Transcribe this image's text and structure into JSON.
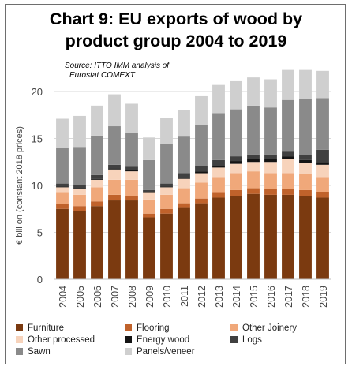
{
  "title": {
    "line1": "Chart 9: EU exports of wood by",
    "line2": "product group 2004 to 2019"
  },
  "source": {
    "line1": "Source: ITTO IMM analysis of",
    "line2": "Eurostat COMEXT"
  },
  "chart_data": {
    "type": "bar",
    "stacked": true,
    "categories": [
      "2004",
      "2005",
      "2006",
      "2007",
      "2008",
      "2009",
      "2010",
      "2011",
      "2012",
      "2013",
      "2014",
      "2015",
      "2016",
      "2017",
      "2018",
      "2019"
    ],
    "ylabel": "€ bill on (constant 2018 prices)",
    "xlabel": "",
    "ylim": [
      0,
      20
    ],
    "yticks": [
      0,
      5,
      10,
      15,
      20
    ],
    "grid": true,
    "legend_position": "bottom",
    "series": [
      {
        "name": "Furniture",
        "color": "#7b3a10",
        "values": [
          7.5,
          7.3,
          7.8,
          8.4,
          8.4,
          6.6,
          7.0,
          7.6,
          8.1,
          8.7,
          8.9,
          9.1,
          9.0,
          9.0,
          8.9,
          8.7
        ]
      },
      {
        "name": "Flooring",
        "color": "#c0622b",
        "values": [
          0.5,
          0.5,
          0.5,
          0.6,
          0.5,
          0.4,
          0.5,
          0.5,
          0.5,
          0.5,
          0.6,
          0.6,
          0.6,
          0.6,
          0.6,
          0.6
        ]
      },
      {
        "name": "Other Joinery",
        "color": "#f0a87a",
        "values": [
          1.2,
          1.2,
          1.5,
          1.6,
          1.7,
          1.5,
          1.5,
          1.6,
          1.7,
          1.7,
          1.8,
          1.8,
          1.7,
          1.7,
          1.7,
          1.6
        ]
      },
      {
        "name": "Other processed",
        "color": "#f7d3bb",
        "values": [
          0.6,
          0.6,
          0.8,
          1.1,
          0.9,
          0.7,
          0.8,
          1.0,
          1.0,
          1.0,
          1.0,
          1.0,
          1.2,
          1.5,
          1.2,
          1.3
        ]
      },
      {
        "name": "Energy wood",
        "color": "#141414",
        "values": [
          0.1,
          0.1,
          0.1,
          0.1,
          0.1,
          0.1,
          0.1,
          0.1,
          0.2,
          0.2,
          0.3,
          0.3,
          0.3,
          0.3,
          0.3,
          0.3
        ]
      },
      {
        "name": "Logs",
        "color": "#404040",
        "values": [
          0.3,
          0.3,
          0.4,
          0.4,
          0.4,
          0.2,
          0.3,
          0.5,
          0.6,
          0.6,
          0.5,
          0.5,
          0.5,
          0.5,
          0.5,
          1.3
        ]
      },
      {
        "name": "Sawn",
        "color": "#8a8a8a",
        "values": [
          3.8,
          4.1,
          4.2,
          4.1,
          3.6,
          3.2,
          4.2,
          3.9,
          4.3,
          5.0,
          5.0,
          5.2,
          5.0,
          5.5,
          6.0,
          5.5
        ]
      },
      {
        "name": "Panels/veneer",
        "color": "#cfcfcf",
        "values": [
          3.1,
          3.3,
          3.2,
          3.4,
          3.1,
          2.4,
          2.8,
          2.8,
          3.1,
          3.0,
          3.0,
          3.0,
          3.0,
          3.2,
          3.1,
          2.9
        ]
      }
    ]
  }
}
